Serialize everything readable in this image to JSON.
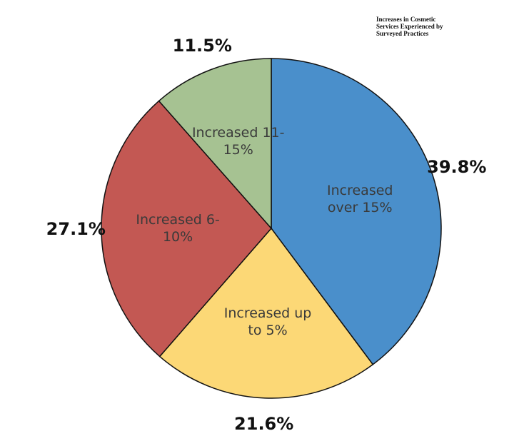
{
  "chart_data": {
    "type": "pie",
    "title": "Increases in Cosmetic Services Experienced by Surveyed Practices",
    "categories": [
      "Increased over 15%",
      "Increased up to 5%",
      "Increased 6-10%",
      "Increased 11-15%"
    ],
    "values": [
      39.8,
      21.6,
      27.1,
      11.5
    ],
    "value_labels": [
      "39.8%",
      "21.6%",
      "27.1%",
      "11.5%"
    ],
    "colors": [
      "#4a8fcb",
      "#fcd876",
      "#c35853",
      "#a6c292"
    ],
    "start_angle": 0,
    "direction": "clockwise"
  }
}
